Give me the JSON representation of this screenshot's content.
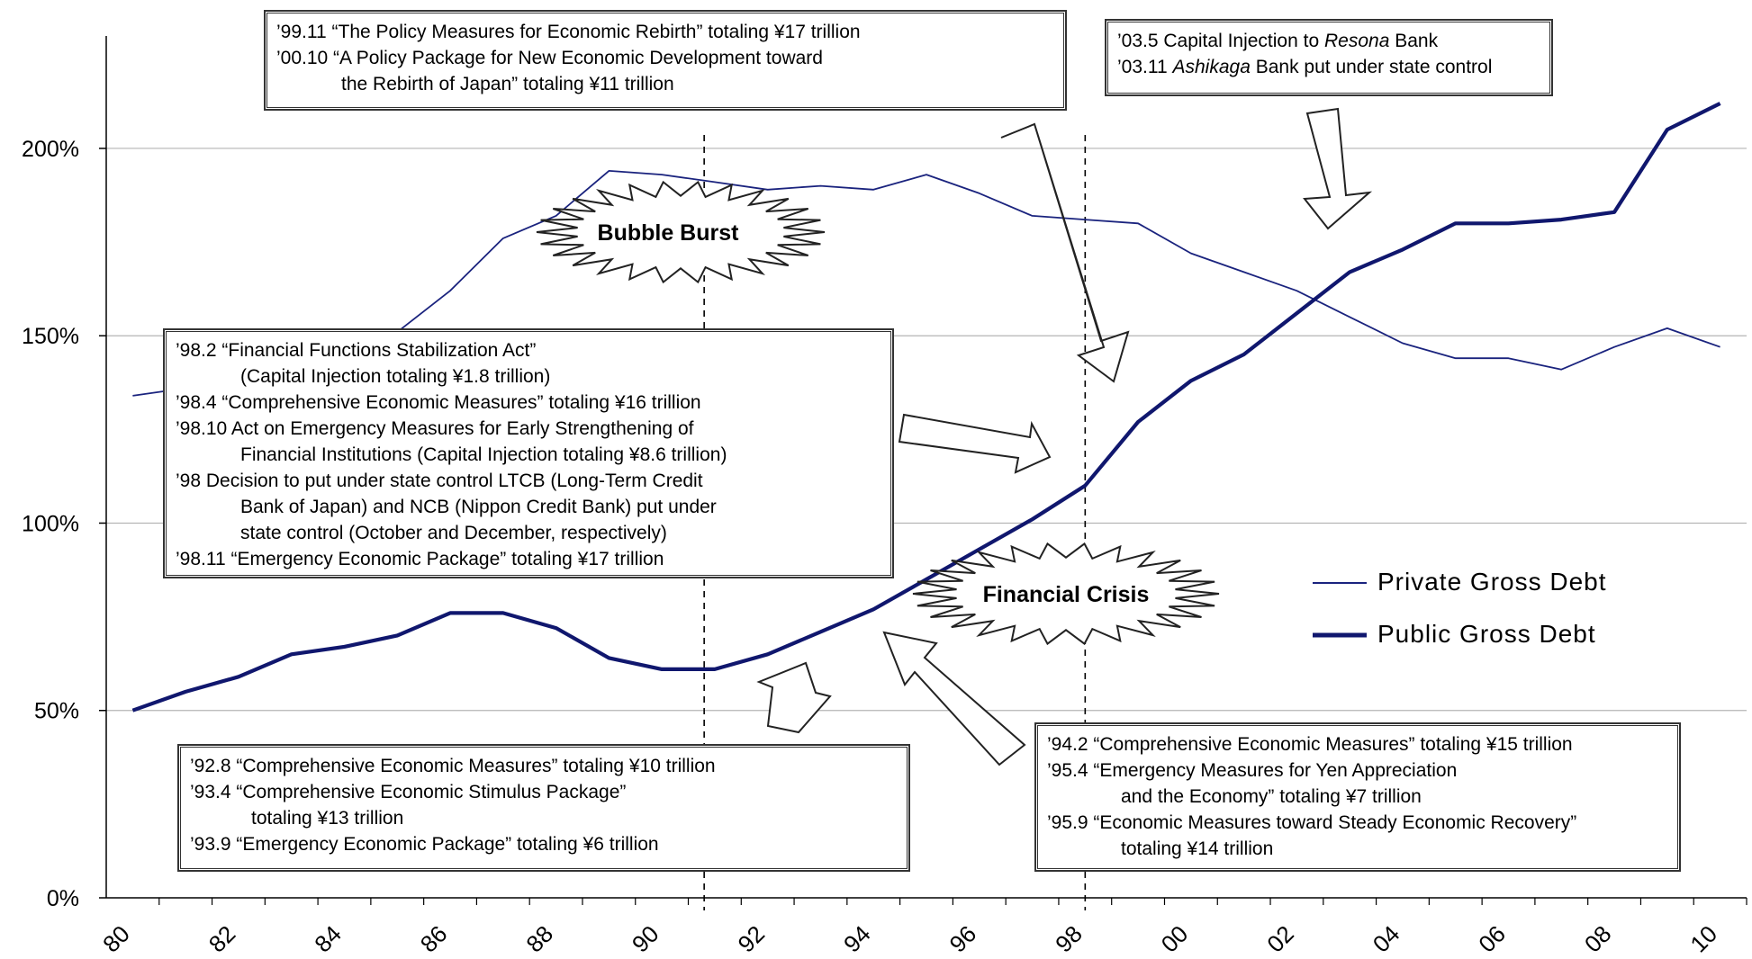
{
  "chart_data": {
    "type": "line",
    "x": [
      1980,
      1981,
      1982,
      1983,
      1984,
      1985,
      1986,
      1987,
      1988,
      1989,
      1990,
      1991,
      1992,
      1993,
      1994,
      1995,
      1996,
      1997,
      1998,
      1999,
      2000,
      2001,
      2002,
      2003,
      2004,
      2005,
      2006,
      2007,
      2008,
      2009,
      2010
    ],
    "xtick_labels": [
      "80",
      "82",
      "84",
      "86",
      "88",
      "90",
      "92",
      "94",
      "96",
      "98",
      "00",
      "02",
      "04",
      "06",
      "08",
      "10"
    ],
    "ytick_labels": [
      "0%",
      "50%",
      "100%",
      "150%",
      "200%"
    ],
    "ylim": [
      0,
      200
    ],
    "grid": "horizontal",
    "legend_position": "right",
    "series": [
      {
        "name": "Private Gross Debt",
        "color": "#1a237e",
        "style": "thin",
        "values": [
          134,
          136,
          141,
          148,
          150,
          151,
          162,
          176,
          182,
          194,
          193,
          191,
          189,
          190,
          189,
          193,
          188,
          182,
          181,
          180,
          172,
          167,
          162,
          155,
          148,
          144,
          144,
          141,
          147,
          152,
          147
        ]
      },
      {
        "name": "Public Gross Debt",
        "color": "#10176e",
        "style": "thick",
        "values": [
          50,
          55,
          59,
          65,
          67,
          70,
          76,
          76,
          72,
          64,
          61,
          61,
          65,
          71,
          77,
          85,
          93,
          101,
          110,
          127,
          138,
          145,
          156,
          167,
          173,
          180,
          180,
          181,
          183,
          205,
          212
        ]
      }
    ],
    "events": [
      {
        "label": "Bubble Burst",
        "x": 1990.8
      },
      {
        "label": "Financial Crisis",
        "x": 1998.0
      }
    ]
  },
  "notes": {
    "box_1999": [
      "’99.11 “The Policy Measures for Economic Rebirth” totaling ¥17 trillion",
      "’00.10 “A Policy Package for New Economic Development toward",
      "the Rebirth of Japan” totaling ¥11 trillion"
    ],
    "box_2003": {
      "l1_pre": "’03.5   Capital Injection to ",
      "l1_italic": "Resona",
      "l1_post": " Bank",
      "l2_pre": "’03.11 ",
      "l2_italic": "Ashikaga",
      "l2_post": " Bank put under state control"
    },
    "box_1998": [
      "’98.2  “Financial Functions Stabilization Act”",
      "(Capital Injection totaling ¥1.8 trillion)",
      "’98.4  “Comprehensive Economic Measures” totaling ¥16 trillion",
      "’98.10 Act on Emergency Measures for Early Strengthening of",
      "Financial Institutions (Capital Injection totaling ¥8.6 trillion)",
      "’98      Decision to put under state control LTCB (Long-Term Credit",
      "Bank of Japan) and NCB (Nippon Credit Bank) put under",
      "state control (October and December, respectively)",
      "’98.11 “Emergency Economic Package” totaling ¥17 trillion"
    ],
    "box_1992": [
      "’92.8  “Comprehensive Economic Measures” totaling ¥10 trillion",
      "’93.4  “Comprehensive Economic Stimulus Package”",
      "totaling ¥13 trillion",
      "’93.9  “Emergency Economic Package” totaling ¥6 trillion"
    ],
    "box_1994": [
      "’94.2    “Comprehensive Economic Measures” totaling ¥15 trillion",
      "’95.4    “Emergency Measures for Yen Appreciation",
      "and the Economy” totaling ¥7 trillion",
      "’95.9    “Economic Measures toward Steady Economic Recovery”",
      "totaling ¥14 trillion"
    ]
  }
}
